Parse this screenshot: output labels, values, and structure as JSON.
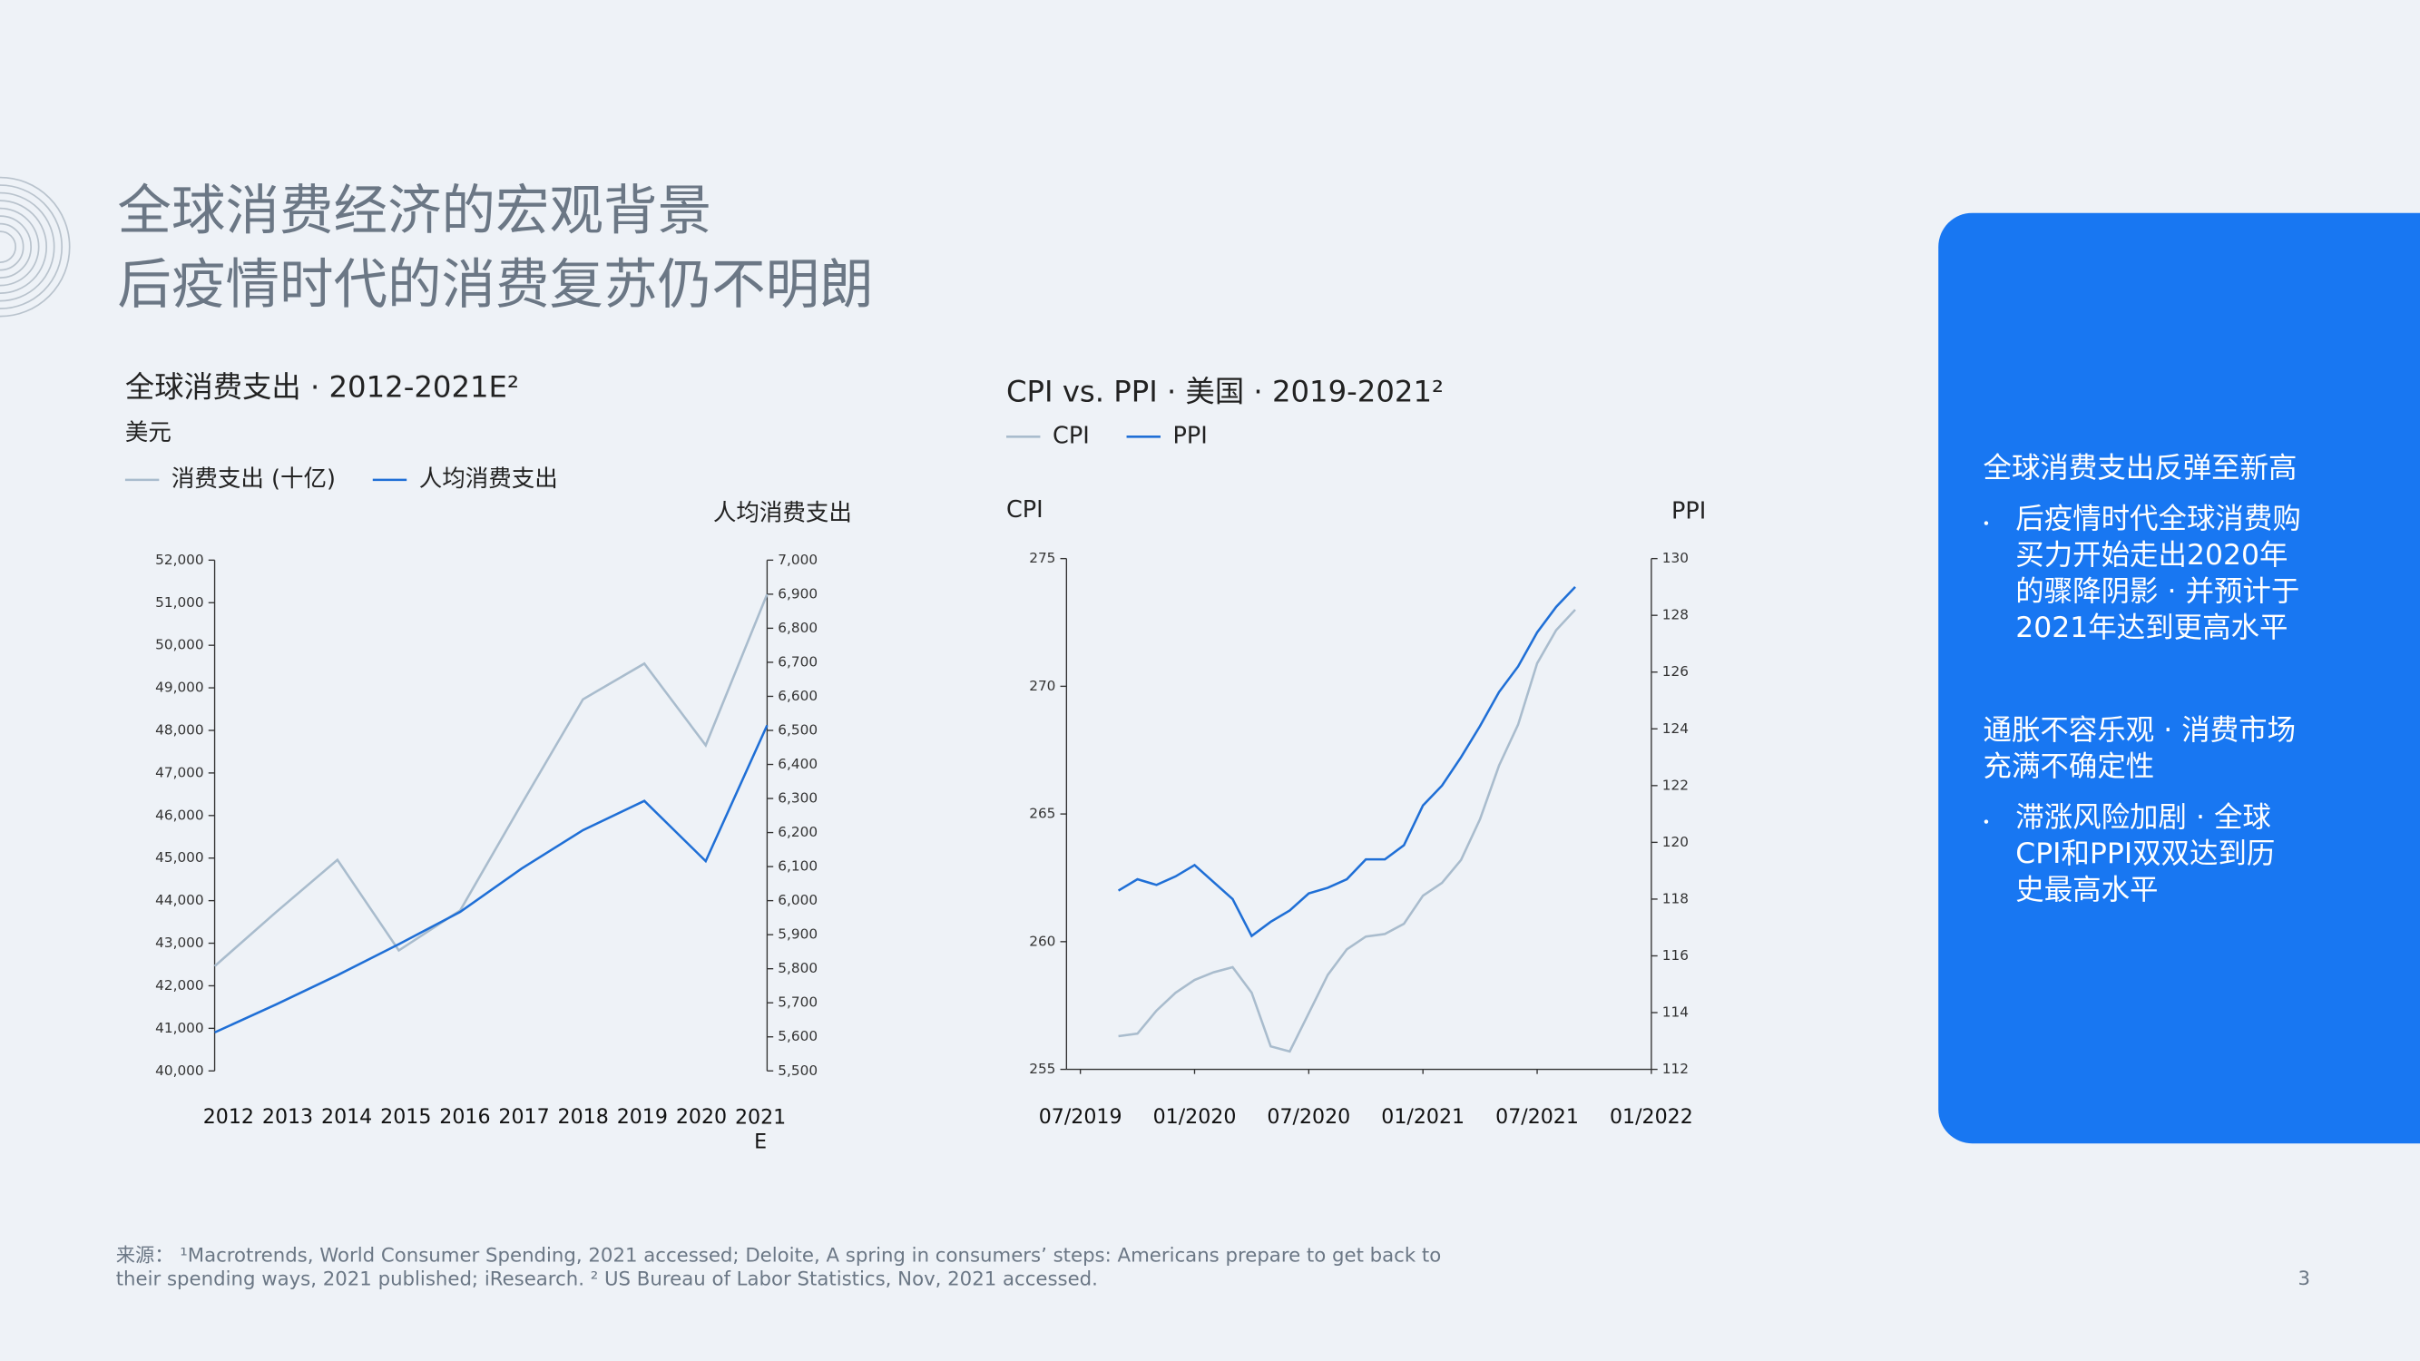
{
  "header": {
    "title_lines": [
      "全球消费经济的宏观背景",
      "后疫情时代的消费复苏仍不明朗"
    ]
  },
  "chart_data": [
    {
      "type": "line",
      "title": "全球消费支出 · 2012-2021E²",
      "subtitle": "美元",
      "y2_label": "人均消费支出",
      "categories": [
        "2012",
        "2013",
        "2014",
        "2015",
        "2016",
        "2017",
        "2018",
        "2019",
        "2020",
        "2021E"
      ],
      "series": [
        {
          "name": "消费支出 (十亿)",
          "color": "#a9bccd",
          "values": [
            42460,
            43730,
            44960,
            42830,
            43770,
            46270,
            48730,
            49570,
            47650,
            51200
          ]
        },
        {
          "name": "人均消费支出",
          "color": "#1f6fd6",
          "axis": "y2",
          "values": [
            5613,
            5695,
            5781,
            5872,
            5967,
            6094,
            6207,
            6293,
            6116,
            6515
          ]
        }
      ],
      "ylim": [
        40000,
        52000
      ],
      "yticks": [
        {
          "value": 40000,
          "label": "40,000"
        },
        {
          "value": 41000,
          "label": "41,000"
        },
        {
          "value": 42000,
          "label": "42,000"
        },
        {
          "value": 43000,
          "label": "43,000"
        },
        {
          "value": 44000,
          "label": "44,000"
        },
        {
          "value": 45000,
          "label": "45,000"
        },
        {
          "value": 46000,
          "label": "46,000"
        },
        {
          "value": 47000,
          "label": "47,000"
        },
        {
          "value": 48000,
          "label": "48,000"
        },
        {
          "value": 49000,
          "label": "49,000"
        },
        {
          "value": 50000,
          "label": "50,000"
        },
        {
          "value": 51000,
          "label": "51,000"
        },
        {
          "value": 52000,
          "label": "52,000"
        }
      ],
      "y2lim": [
        5500,
        7000
      ],
      "y2ticks": [
        {
          "value": 5500,
          "label": "5,500"
        },
        {
          "value": 5600,
          "label": "5,600"
        },
        {
          "value": 5700,
          "label": "5,700"
        },
        {
          "value": 5800,
          "label": "5,800"
        },
        {
          "value": 5900,
          "label": "5,900"
        },
        {
          "value": 6000,
          "label": "6,000"
        },
        {
          "value": 6100,
          "label": "6,100"
        },
        {
          "value": 6200,
          "label": "6,200"
        },
        {
          "value": 6300,
          "label": "6,300"
        },
        {
          "value": 6400,
          "label": "6,400"
        },
        {
          "value": 6500,
          "label": "6,500"
        },
        {
          "value": 6600,
          "label": "6,600"
        },
        {
          "value": 6700,
          "label": "6,700"
        },
        {
          "value": 6800,
          "label": "6,800"
        },
        {
          "value": 6900,
          "label": "6,900"
        },
        {
          "value": 7000,
          "label": "7,000"
        }
      ]
    },
    {
      "type": "line",
      "title": "CPI vs. PPI · 美国 · 2019-2021²",
      "y_label": "CPI",
      "y2_label": "PPI",
      "x": [
        "09/2019",
        "10/2019",
        "11/2019",
        "12/2019",
        "01/2020",
        "02/2020",
        "03/2020",
        "04/2020",
        "05/2020",
        "06/2020",
        "07/2020",
        "08/2020",
        "09/2020",
        "10/2020",
        "11/2020",
        "12/2020",
        "01/2021",
        "02/2021",
        "03/2021",
        "04/2021",
        "05/2021",
        "06/2021",
        "07/2021",
        "08/2021",
        "09/2021"
      ],
      "series": [
        {
          "name": "CPI",
          "color": "#a9bccd",
          "values": [
            256.3,
            256.4,
            257.3,
            258.0,
            258.5,
            258.8,
            259.0,
            258.0,
            255.9,
            255.7,
            257.2,
            258.7,
            259.7,
            260.2,
            260.3,
            260.7,
            261.8,
            262.3,
            263.2,
            264.8,
            266.9,
            268.5,
            270.9,
            272.2,
            273.0
          ]
        },
        {
          "name": "PPI",
          "color": "#1f6fd6",
          "axis": "y2",
          "values": [
            118.3,
            118.7,
            118.5,
            118.8,
            119.2,
            118.6,
            118.0,
            116.7,
            117.2,
            117.6,
            118.2,
            118.4,
            118.7,
            119.4,
            119.4,
            119.9,
            121.3,
            122.0,
            123.0,
            124.1,
            125.3,
            126.2,
            127.4,
            128.3,
            129.0
          ]
        }
      ],
      "xlim": [
        "07/2019",
        "01/2022"
      ],
      "xticks": [
        "07/2019",
        "01/2020",
        "07/2020",
        "01/2021",
        "07/2021",
        "01/2022"
      ],
      "ylim": [
        255,
        275
      ],
      "yticks": [
        255,
        260,
        265,
        270,
        275
      ],
      "y2lim": [
        112,
        130
      ],
      "y2ticks": [
        112,
        114,
        116,
        118,
        120,
        122,
        124,
        126,
        128,
        130
      ]
    }
  ],
  "sidebar": {
    "sections": [
      {
        "heading": [
          "全球消费支出反弹至新高"
        ],
        "bullet": [
          "后疫情时代全球消费购",
          "买力开始走出2020年",
          "的骤降阴影 · 并预计于",
          "2021年达到更高水平"
        ]
      },
      {
        "heading": [
          "通胀不容乐观 · 消费市场",
          "充满不确定性"
        ],
        "bullet": [
          "滞涨风险加剧 · 全球",
          "CPI和PPI双双达到历",
          "史最高水平"
        ]
      }
    ]
  },
  "footnote": [
    "来源： ¹Macrotrends, World Consumer Spending, 2021 accessed; Deloite, A spring in consumers’ steps: Americans prepare to get back to",
    "their spending ways, 2021 published; iResearch. ² US Bureau of Labor Statistics, Nov, 2021 accessed."
  ],
  "page_number": "3"
}
